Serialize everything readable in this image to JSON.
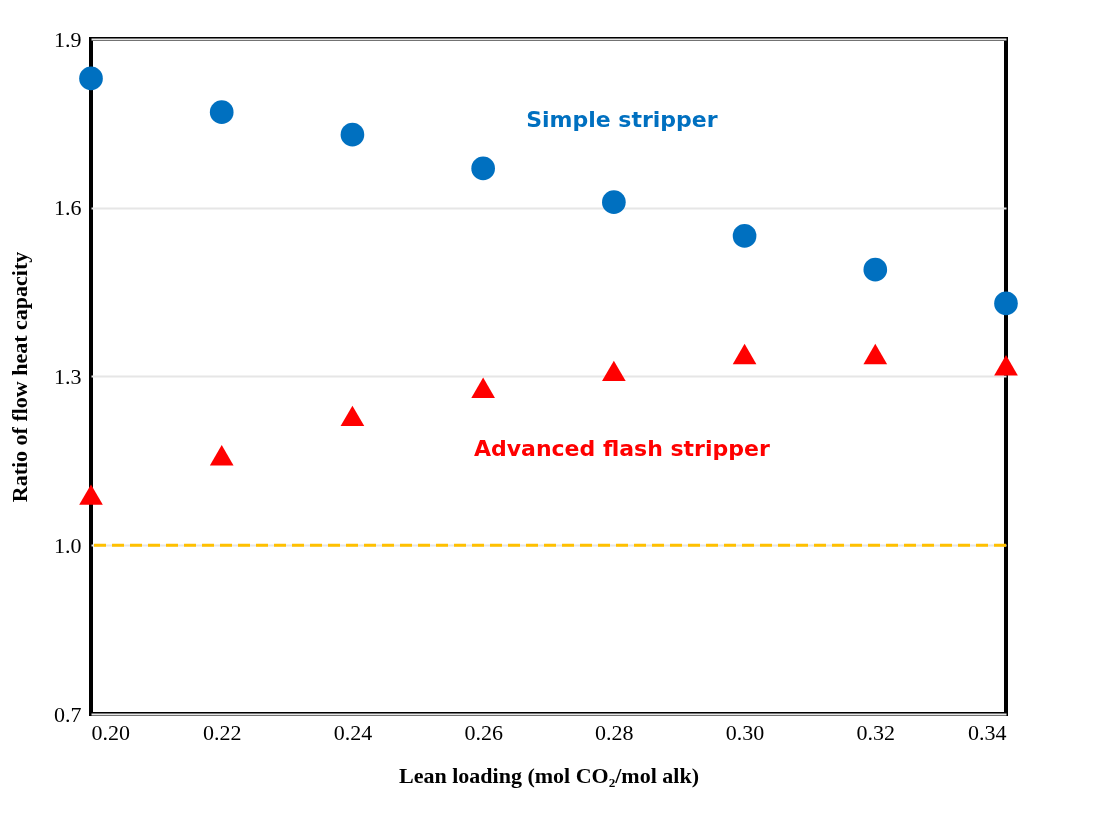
{
  "chart_data": {
    "type": "scatter",
    "xlabel": "Lean loading (mol CO₂/mol alk)",
    "ylabel": "Ratio of flow heat capacity",
    "x": [
      0.2,
      0.22,
      0.24,
      0.26,
      0.28,
      0.3,
      0.32,
      0.34
    ],
    "series": [
      {
        "name": "Simple stripper",
        "color": "#0070c0",
        "marker": "circle",
        "values": [
          1.83,
          1.77,
          1.73,
          1.67,
          1.61,
          1.55,
          1.49,
          1.43
        ]
      },
      {
        "name": "Advanced flash stripper",
        "color": "#ff0000",
        "marker": "triangle",
        "values": [
          1.09,
          1.16,
          1.23,
          1.28,
          1.31,
          1.34,
          1.34,
          1.32
        ]
      }
    ],
    "xlim": [
      0.2,
      0.34
    ],
    "xticks": [
      {
        "value": 0.2,
        "label": "0.20"
      },
      {
        "value": 0.22,
        "label": "0.22"
      },
      {
        "value": 0.24,
        "label": "0.24"
      },
      {
        "value": 0.26,
        "label": "0.26"
      },
      {
        "value": 0.28,
        "label": "0.28"
      },
      {
        "value": 0.3,
        "label": "0.30"
      },
      {
        "value": 0.32,
        "label": "0.32"
      },
      {
        "value": 0.34,
        "label": "0.34"
      }
    ],
    "ylim": [
      0.7,
      1.9
    ],
    "yticks": [
      {
        "value": 0.7,
        "label": "0.7"
      },
      {
        "value": 1.0,
        "label": "1.0"
      },
      {
        "value": 1.3,
        "label": "1.3"
      },
      {
        "value": 1.6,
        "label": "1.6"
      },
      {
        "value": 1.9,
        "label": "1.9"
      }
    ],
    "grid": "y",
    "ref_lines": [
      {
        "axis": "y",
        "value": 1.0,
        "color": "#ffc000",
        "line_style": "dashed"
      }
    ]
  }
}
